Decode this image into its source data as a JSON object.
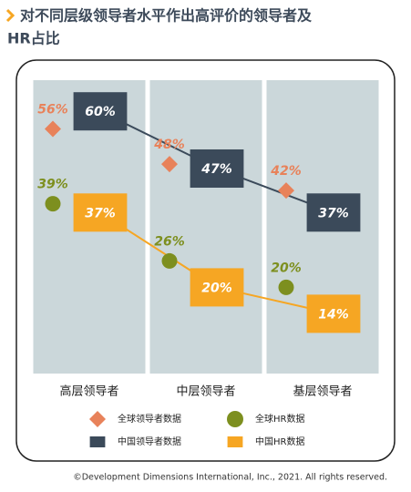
{
  "chart_data": {
    "type": "dot",
    "title": [
      "对不同层级领导者水平作出高评价的领导者及",
      "HR占比"
    ],
    "categories": [
      "高层领导者",
      "中层领导者",
      "基层领导者"
    ],
    "series": [
      {
        "name": "全球领导者数据",
        "color": "#e8825a",
        "marker": "diamond",
        "values": [
          56,
          48,
          42
        ],
        "value_labels": [
          "56%",
          "48%",
          "42%"
        ]
      },
      {
        "name": "全球HR数据",
        "color": "#7d8f1f",
        "marker": "circle",
        "values": [
          39,
          26,
          20
        ],
        "value_labels": [
          "39%",
          "26%",
          "20%"
        ]
      },
      {
        "name": "中国领导者数据",
        "color": "#3b4a5a",
        "marker": "square",
        "line": true,
        "values": [
          60,
          47,
          37
        ],
        "value_labels": [
          "60%",
          "47%",
          "37%"
        ]
      },
      {
        "name": "中国HR数据",
        "color": "#f6a623",
        "marker": "square",
        "line": true,
        "values": [
          37,
          20,
          14
        ],
        "value_labels": [
          "37%",
          "20%",
          "14%"
        ]
      }
    ],
    "footnote": "©Development Dimensions International, Inc., 2021. All rights reserved."
  }
}
